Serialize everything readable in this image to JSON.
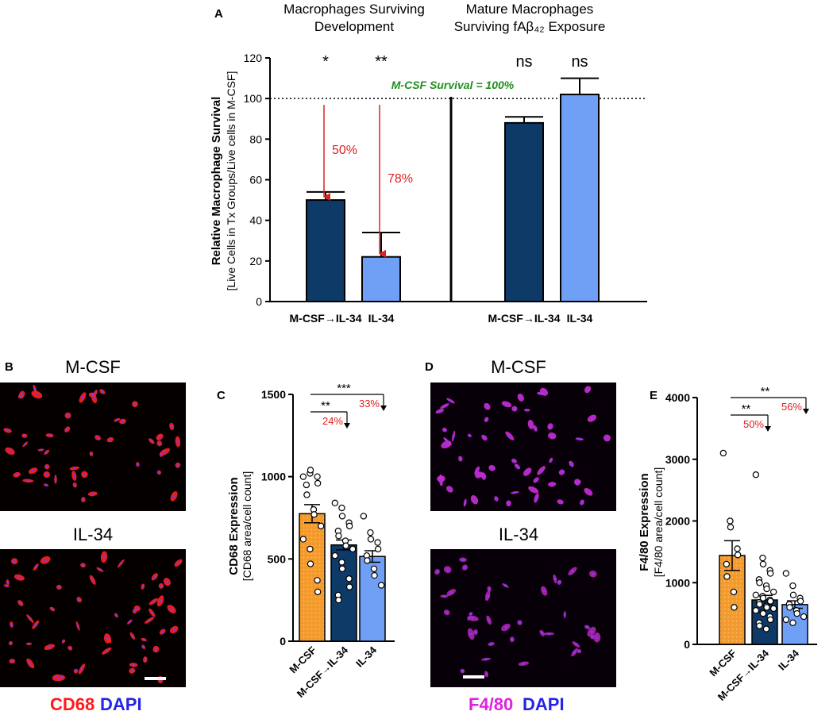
{
  "chart_data": [
    {
      "panel": "A",
      "type": "bar",
      "group_titles": [
        [
          "Macrophages Surviving",
          "Development"
        ],
        [
          "Mature Macrophages",
          "Surviving fAβ₄₂ Exposure"
        ]
      ],
      "ylabel": "Relative Macrophage Survival",
      "ylabel2": "[Live Cells in Tx Groups/Live cells in M-CSF]",
      "ylim": [
        0,
        120
      ],
      "yticks": [
        0,
        20,
        40,
        60,
        80,
        100,
        120
      ],
      "reference_line": {
        "value": 100,
        "label": "M-CSF Survival = 100%"
      },
      "bars": [
        {
          "category": "M-CSF→IL-34",
          "value": 50,
          "sem": 4,
          "color": "#0d3a66",
          "sig": "*",
          "drop": "50%"
        },
        {
          "category": "IL-34",
          "value": 22,
          "sem": 12,
          "color": "#6fa0f5",
          "sig": "**",
          "drop": "78%"
        },
        {
          "category": "M-CSF→IL-34",
          "value": 88,
          "sem": 3,
          "color": "#0d3a66",
          "sig": "ns"
        },
        {
          "category": "IL-34",
          "value": 102,
          "sem": 8,
          "color": "#6fa0f5",
          "sig": "ns"
        }
      ]
    },
    {
      "panel": "C",
      "type": "bar",
      "ylabel": "CD68 Expression",
      "ylabel2": "[CD68 area/cell count]",
      "ylim": [
        0,
        1500
      ],
      "yticks": [
        0,
        500,
        1000,
        1500
      ],
      "categories": [
        "M-CSF",
        "M-CSF→IL-34",
        "IL-34"
      ],
      "values": [
        775,
        585,
        515
      ],
      "sem": [
        55,
        30,
        35
      ],
      "colors": [
        "#f39a2c",
        "#0d3a66",
        "#6fa0f5"
      ],
      "points": [
        [
          1000,
          1020,
          1040,
          1000,
          960,
          950,
          890,
          800,
          770,
          700,
          620,
          560,
          470,
          370,
          300
        ],
        [
          840,
          810,
          760,
          720,
          700,
          670,
          640,
          610,
          580,
          560,
          520,
          480,
          440,
          380,
          330,
          280,
          250
        ],
        [
          760,
          660,
          620,
          600,
          560,
          520,
          490,
          440,
          400,
          340
        ]
      ],
      "comparisons": [
        {
          "sig": "***",
          "pct": "33%",
          "from": 0,
          "to": 2
        },
        {
          "sig": "**",
          "pct": "24%",
          "from": 0,
          "to": 1
        }
      ]
    },
    {
      "panel": "E",
      "type": "bar",
      "ylabel": "F4/80 Expression",
      "ylabel2": "[F4/80 area/cell count]",
      "ylim": [
        0,
        4000
      ],
      "yticks": [
        0,
        1000,
        2000,
        3000,
        4000
      ],
      "categories": [
        "M-CSF",
        "M-CSF→IL-34",
        "IL-34"
      ],
      "values": [
        1440,
        720,
        645
      ],
      "sem": [
        240,
        75,
        60
      ],
      "colors": [
        "#f39a2c",
        "#0d3a66",
        "#6fa0f5"
      ],
      "points": [
        [
          3100,
          2000,
          1900,
          1550,
          1450,
          1300,
          1100,
          850,
          600
        ],
        [
          2750,
          1400,
          1300,
          1200,
          1150,
          1050,
          1000,
          950,
          900,
          850,
          800,
          780,
          750,
          720,
          700,
          680,
          650,
          620,
          600,
          580,
          550,
          520,
          500,
          450,
          400,
          350,
          300,
          250
        ],
        [
          1150,
          950,
          800,
          750,
          700,
          650,
          600,
          550,
          500,
          450,
          400,
          350
        ]
      ],
      "comparisons": [
        {
          "sig": "**",
          "pct": "56%",
          "from": 0,
          "to": 2
        },
        {
          "sig": "**",
          "pct": "50%",
          "from": 0,
          "to": 1
        }
      ]
    }
  ],
  "panel_letters": [
    "A",
    "B",
    "C",
    "D",
    "E"
  ],
  "panel_B": {
    "top": "M-CSF",
    "bottom": "IL-34",
    "stain1": "CD68",
    "stain2": "DAPI"
  },
  "panel_D": {
    "top": "M-CSF",
    "bottom": "IL-34",
    "stain1": "F4/80",
    "stain2": "DAPI"
  }
}
